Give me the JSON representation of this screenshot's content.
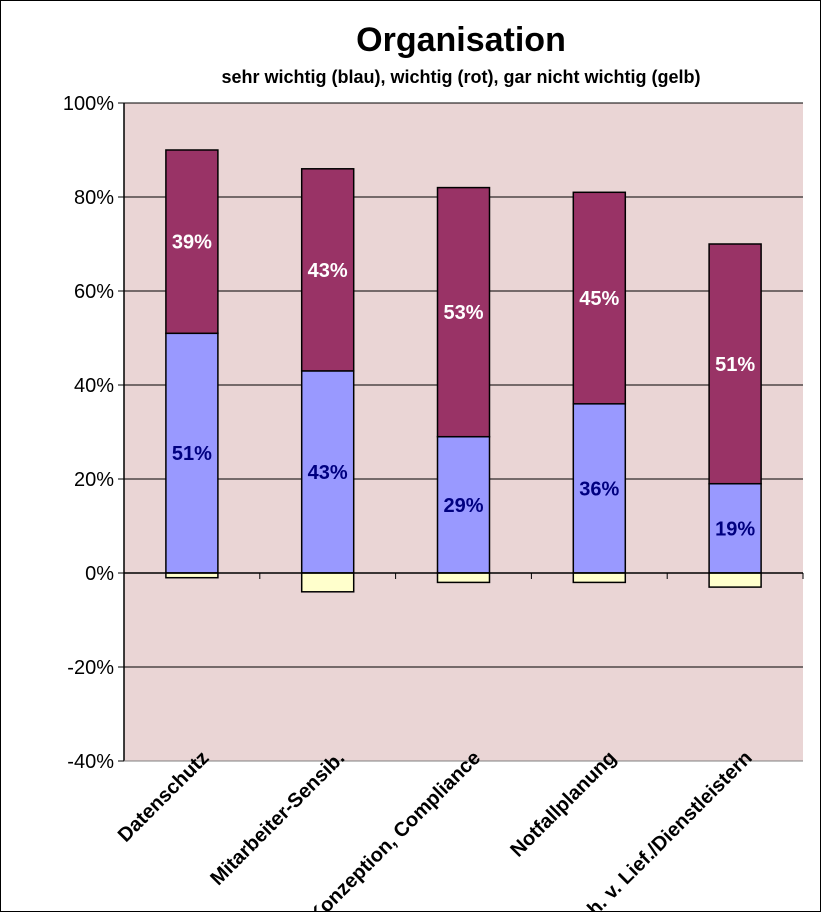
{
  "chart_data": {
    "type": "bar",
    "stacked": true,
    "title": "Organisation",
    "subtitle": "sehr wichtig (blau), wichtig (rot), gar nicht wichtig (gelb)",
    "categories": [
      "Datenschutz",
      "Mitarbeiter-Sensib.",
      "Konzeption, Compliance",
      "Notfallplanung",
      "Sich. v. Lief./Dienstleistern"
    ],
    "series": [
      {
        "name": "sehr wichtig",
        "color": "#9999FF",
        "values": [
          51,
          43,
          29,
          36,
          19
        ],
        "labels": [
          "51%",
          "43%",
          "29%",
          "36%",
          "19%"
        ]
      },
      {
        "name": "wichtig",
        "color": "#993366",
        "values": [
          39,
          43,
          53,
          45,
          51
        ],
        "labels": [
          "39%",
          "43%",
          "53%",
          "45%",
          "51%"
        ]
      },
      {
        "name": "gar nicht wichtig",
        "color": "#FFFFCC",
        "values": [
          -1,
          -4,
          -2,
          -2,
          -3
        ]
      }
    ],
    "yticks": [
      "100%",
      "80%",
      "60%",
      "40%",
      "20%",
      "0%",
      "-20%",
      "-40%"
    ],
    "ylim": [
      -40,
      100
    ],
    "grid": true,
    "plot_background": "#EAD5D5",
    "label_colors": {
      "on_blue": "#000080",
      "on_red": "#FFFFFF"
    }
  }
}
